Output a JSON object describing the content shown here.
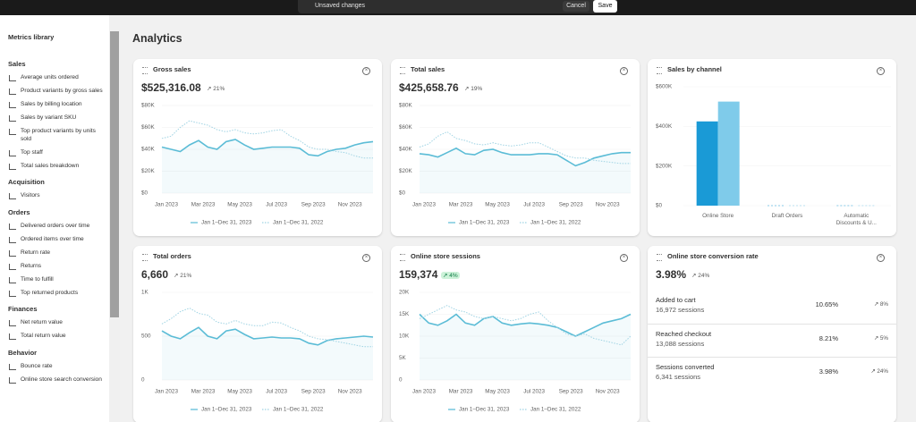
{
  "top_bar": {
    "message": "Unsaved changes",
    "cancel": "Cancel",
    "save": "Save"
  },
  "sidebar": {
    "title": "Metrics library",
    "sections": [
      {
        "heading": "Sales",
        "items": [
          "Average units ordered",
          "Product variants by gross sales",
          "Sales by billing location",
          "Sales by variant SKU",
          "Top product variants by units sold",
          "Top staff",
          "Total sales breakdown"
        ]
      },
      {
        "heading": "Acquisition",
        "items": [
          "Visitors"
        ]
      },
      {
        "heading": "Orders",
        "items": [
          "Delivered orders over time",
          "Ordered items over time",
          "Return rate",
          "Returns",
          "Time to fulfill",
          "Top returned products"
        ]
      },
      {
        "heading": "Finances",
        "items": [
          "Net return value",
          "Total return value"
        ]
      },
      {
        "heading": "Behavior",
        "items": [
          "Bounce rate",
          "Online store search conversion"
        ]
      }
    ]
  },
  "page_title": "Analytics",
  "chart_data": [
    {
      "type": "line",
      "title": "Gross sales",
      "total": "$525,316.08",
      "change": "21%",
      "categories": [
        "Jan 2023",
        null,
        null,
        null,
        "Mar 2023",
        null,
        null,
        null,
        "May 2023",
        null,
        null,
        null,
        "Jul 2023",
        null,
        null,
        null,
        "Sep 2023",
        null,
        null,
        null,
        "Nov 2023",
        null,
        null,
        null
      ],
      "series": [
        {
          "name": "Jan 1–Dec 31, 2023",
          "color": "#5bbcd6",
          "values": [
            42000,
            40000,
            38000,
            44000,
            48000,
            42000,
            40000,
            47000,
            49000,
            44000,
            40000,
            41000,
            42000,
            42000,
            42000,
            41000,
            35000,
            34000,
            38000,
            40000,
            41000,
            44000,
            46000,
            47000
          ]
        },
        {
          "name": "Jan 1–Dec 31, 2022",
          "color": "#9fd3e3",
          "dashed": true,
          "values": [
            50000,
            52000,
            60000,
            66000,
            64000,
            62000,
            58000,
            56000,
            58000,
            55000,
            54000,
            55000,
            57000,
            58000,
            52000,
            48000,
            42000,
            40000,
            40000,
            38000,
            37000,
            34000,
            32000,
            32000
          ]
        }
      ],
      "ylim": [
        0,
        80000
      ],
      "yticks": [
        {
          "value": 0,
          "label": "$0"
        },
        {
          "value": 20000,
          "label": "$20K"
        },
        {
          "value": 40000,
          "label": "$40K"
        },
        {
          "value": 60000,
          "label": "$60K"
        },
        {
          "value": 80000,
          "label": "$80K"
        }
      ]
    },
    {
      "type": "line",
      "title": "Total sales",
      "total": "$425,658.76",
      "change": "19%",
      "categories": [
        "Jan 2023",
        null,
        null,
        null,
        "Mar 2023",
        null,
        null,
        null,
        "May 2023",
        null,
        null,
        null,
        "Jul 2023",
        null,
        null,
        null,
        "Sep 2023",
        null,
        null,
        null,
        "Nov 2023",
        null,
        null,
        null
      ],
      "series": [
        {
          "name": "Jan 1–Dec 31, 2023",
          "color": "#5bbcd6",
          "values": [
            36000,
            35000,
            33000,
            37000,
            41000,
            36000,
            35000,
            39000,
            40000,
            37000,
            35000,
            35000,
            35000,
            36000,
            36000,
            35000,
            30000,
            25000,
            28000,
            32000,
            34000,
            36000,
            37000,
            37000
          ]
        },
        {
          "name": "Jan 1–Dec 31, 2022",
          "color": "#9fd3e3",
          "dashed": true,
          "values": [
            42000,
            45000,
            52000,
            56000,
            50000,
            48000,
            45000,
            44000,
            46000,
            44000,
            43000,
            44000,
            46000,
            46000,
            42000,
            38000,
            34000,
            32000,
            32000,
            30000,
            29000,
            28000,
            27000,
            27000
          ]
        }
      ],
      "ylim": [
        0,
        80000
      ],
      "yticks": [
        {
          "value": 0,
          "label": "$0"
        },
        {
          "value": 20000,
          "label": "$20K"
        },
        {
          "value": 40000,
          "label": "$40K"
        },
        {
          "value": 60000,
          "label": "$60K"
        },
        {
          "value": 80000,
          "label": "$80K"
        }
      ]
    },
    {
      "type": "bar",
      "title": "Sales by channel",
      "categories": [
        "Online Store",
        "Draft Orders",
        "Automatic Discounts & U..."
      ],
      "series": [
        {
          "name": "Jan 1–Dec 31, 2023",
          "color": "#1a9ad6",
          "values": [
            425000,
            0,
            0
          ]
        },
        {
          "name": "Jan 1–Dec 31, 2022",
          "color": "#7fcbea",
          "values": [
            525000,
            0,
            0
          ]
        }
      ],
      "ylim": [
        0,
        600000
      ],
      "yticks": [
        {
          "value": 0,
          "label": "$0"
        },
        {
          "value": 200000,
          "label": "$200K"
        },
        {
          "value": 400000,
          "label": "$400K"
        },
        {
          "value": 600000,
          "label": "$600K"
        }
      ]
    },
    {
      "type": "line",
      "title": "Total orders",
      "total": "6,660",
      "change": "21%",
      "categories": [
        "Jan 2023",
        null,
        null,
        null,
        "Mar 2023",
        null,
        null,
        null,
        "May 2023",
        null,
        null,
        null,
        "Jul 2023",
        null,
        null,
        null,
        "Sep 2023",
        null,
        null,
        null,
        "Nov 2023",
        null,
        null,
        null
      ],
      "series": [
        {
          "name": "Jan 1–Dec 31, 2023",
          "color": "#5bbcd6",
          "values": [
            560,
            500,
            470,
            540,
            600,
            500,
            470,
            560,
            580,
            520,
            470,
            480,
            490,
            480,
            480,
            470,
            420,
            400,
            450,
            470,
            480,
            490,
            500,
            490
          ]
        },
        {
          "name": "Jan 1–Dec 31, 2022",
          "color": "#9fd3e3",
          "dashed": true,
          "values": [
            640,
            700,
            780,
            820,
            760,
            740,
            660,
            640,
            680,
            640,
            620,
            620,
            660,
            650,
            600,
            560,
            500,
            470,
            460,
            440,
            420,
            400,
            380,
            380
          ]
        }
      ],
      "ylim": [
        0,
        1000
      ],
      "yticks": [
        0,
        500,
        {
          "value": 1000,
          "label": "1K"
        }
      ]
    },
    {
      "type": "line",
      "title": "Online store sessions",
      "total": "159,374",
      "change": "4%",
      "categories": [
        "Jan 2023",
        null,
        null,
        null,
        "Mar 2023",
        null,
        null,
        null,
        "May 2023",
        null,
        null,
        null,
        "Jul 2023",
        null,
        null,
        null,
        "Sep 2023",
        null,
        null,
        null,
        "Nov 2023",
        null,
        null,
        null
      ],
      "series": [
        {
          "name": "Jan 1–Dec 31, 2023",
          "color": "#5bbcd6",
          "values": [
            15000,
            13000,
            12500,
            13500,
            15000,
            13000,
            12500,
            14000,
            14500,
            13000,
            12500,
            12800,
            13000,
            12800,
            12500,
            12000,
            11000,
            10000,
            11000,
            12000,
            13000,
            13500,
            14000,
            15000
          ]
        },
        {
          "name": "Jan 1–Dec 31, 2022",
          "color": "#9fd3e3",
          "dashed": true,
          "values": [
            14000,
            15000,
            16000,
            17000,
            16000,
            15500,
            14500,
            14000,
            14500,
            14000,
            13500,
            14000,
            15000,
            15500,
            13500,
            12000,
            10500,
            10000,
            10500,
            9500,
            9000,
            8500,
            8000,
            10000
          ]
        }
      ],
      "ylim": [
        0,
        20000
      ],
      "yticks": [
        0,
        {
          "value": 5000,
          "label": "5K"
        },
        {
          "value": 10000,
          "label": "10K"
        },
        {
          "value": 15000,
          "label": "15K"
        },
        {
          "value": 20000,
          "label": "20K"
        }
      ]
    }
  ],
  "conversion_card": {
    "title": "Online store conversion rate",
    "total": "3.98%",
    "change": "24%",
    "rows": [
      {
        "label": "Added to cart",
        "sessions": "16,972 sessions",
        "rate": "10.65%",
        "change": "8%"
      },
      {
        "label": "Reached checkout",
        "sessions": "13,088 sessions",
        "rate": "8.21%",
        "change": "5%"
      },
      {
        "label": "Sessions converted",
        "sessions": "6,341 sessions",
        "rate": "3.98%",
        "change": "24%"
      }
    ]
  }
}
